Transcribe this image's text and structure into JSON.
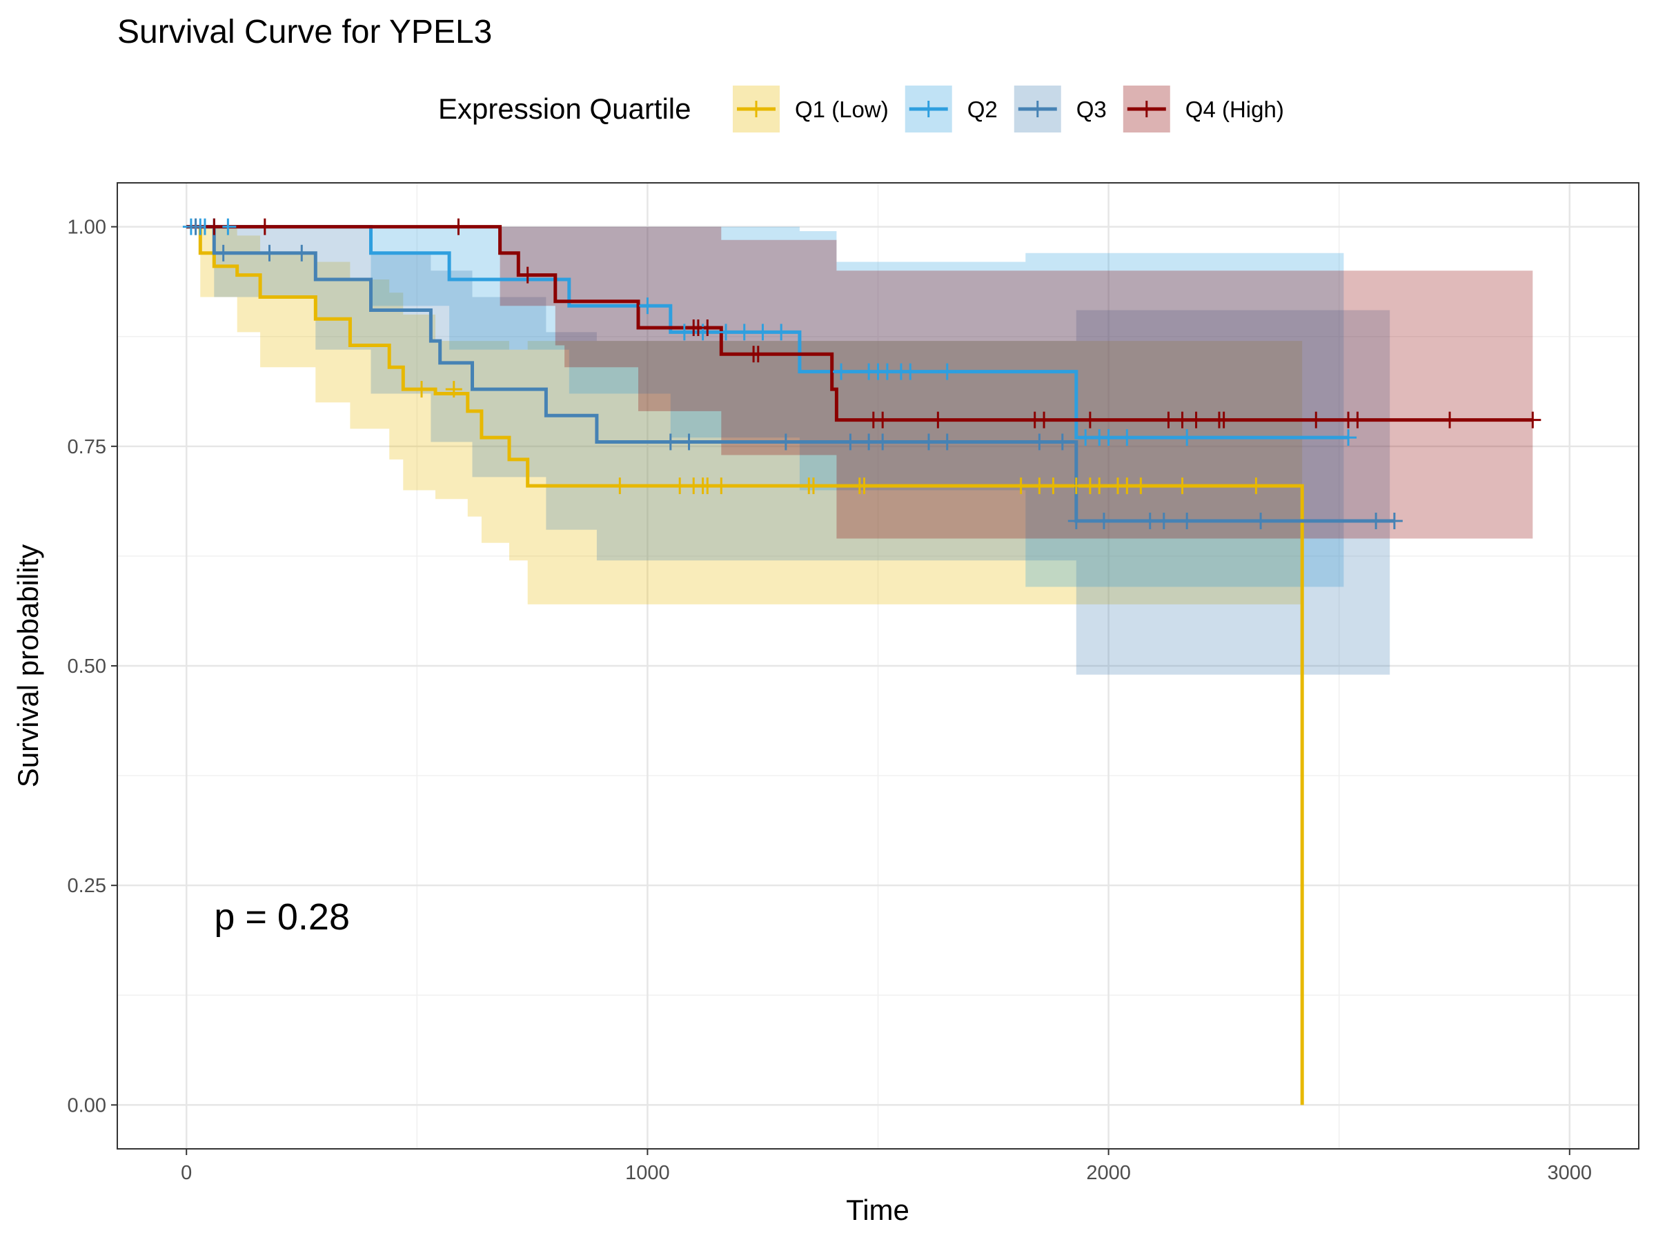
{
  "chart_data": {
    "type": "line",
    "title": "Survival Curve for YPEL3",
    "xlabel": "Time",
    "ylabel": "Survival probability",
    "xlim": [
      -150,
      3150
    ],
    "ylim": [
      -0.05,
      1.05
    ],
    "x_ticks": [
      0,
      1000,
      2000,
      3000
    ],
    "x_tick_labels": [
      "0",
      "1000",
      "2000",
      "3000"
    ],
    "y_ticks": [
      0,
      0.25,
      0.5,
      0.75,
      1.0
    ],
    "y_tick_labels": [
      "0.00",
      "0.25",
      "0.50",
      "0.75",
      "1.00"
    ],
    "grid": true,
    "legend_position": "top",
    "legend_title": "Expression Quartile",
    "annotation": "p = 0.28",
    "annotation_position": {
      "x": 60,
      "y": 0.2
    },
    "series": [
      {
        "name": "Q1 (Low)",
        "color": "#E7B800",
        "steps": [
          [
            0,
            1.0
          ],
          [
            30,
            0.97
          ],
          [
            60,
            0.955
          ],
          [
            110,
            0.945
          ],
          [
            160,
            0.92
          ],
          [
            280,
            0.895
          ],
          [
            355,
            0.865
          ],
          [
            440,
            0.84
          ],
          [
            470,
            0.815
          ],
          [
            540,
            0.81
          ],
          [
            610,
            0.79
          ],
          [
            640,
            0.76
          ],
          [
            700,
            0.735
          ],
          [
            740,
            0.705
          ],
          [
            2420,
            0.705
          ],
          [
            2420,
            0.0
          ]
        ],
        "ci_lower": [
          [
            0,
            1.0
          ],
          [
            30,
            0.92
          ],
          [
            110,
            0.88
          ],
          [
            160,
            0.84
          ],
          [
            280,
            0.8
          ],
          [
            355,
            0.77
          ],
          [
            440,
            0.735
          ],
          [
            470,
            0.7
          ],
          [
            540,
            0.69
          ],
          [
            610,
            0.67
          ],
          [
            640,
            0.64
          ],
          [
            700,
            0.62
          ],
          [
            740,
            0.57
          ],
          [
            2420,
            0.57
          ]
        ],
        "ci_upper": [
          [
            0,
            1.0
          ],
          [
            30,
            1.0
          ],
          [
            110,
            0.99
          ],
          [
            160,
            0.97
          ],
          [
            280,
            0.96
          ],
          [
            355,
            0.94
          ],
          [
            440,
            0.925
          ],
          [
            470,
            0.9
          ],
          [
            540,
            0.87
          ],
          [
            610,
            0.87
          ],
          [
            640,
            0.87
          ],
          [
            700,
            0.86
          ],
          [
            740,
            0.87
          ],
          [
            2420,
            0.87
          ]
        ],
        "censor_times": [
          510,
          580,
          940,
          1070,
          1100,
          1120,
          1130,
          1160,
          1350,
          1360,
          1460,
          1470,
          1810,
          1850,
          1880,
          1930,
          1960,
          1980,
          2020,
          2040,
          2070,
          2160,
          2320
        ],
        "censor_values": [
          0.815,
          0.815,
          0.705,
          0.705,
          0.705,
          0.705,
          0.705,
          0.705,
          0.705,
          0.705,
          0.705,
          0.705,
          0.705,
          0.705,
          0.705,
          0.705,
          0.705,
          0.705,
          0.705,
          0.705,
          0.705,
          0.705,
          0.705
        ]
      },
      {
        "name": "Q2",
        "color": "#2E9FDF",
        "steps": [
          [
            0,
            1.0
          ],
          [
            400,
            0.97
          ],
          [
            570,
            0.94
          ],
          [
            830,
            0.91
          ],
          [
            1050,
            0.88
          ],
          [
            1330,
            0.835
          ],
          [
            1930,
            0.76
          ],
          [
            2520,
            0.76
          ]
        ],
        "ci_lower": [
          [
            0,
            1.0
          ],
          [
            400,
            0.91
          ],
          [
            570,
            0.86
          ],
          [
            830,
            0.81
          ],
          [
            1050,
            0.76
          ],
          [
            1330,
            0.7
          ],
          [
            1820,
            0.59
          ],
          [
            2510,
            0.59
          ]
        ],
        "ci_upper": [
          [
            0,
            1.0
          ],
          [
            400,
            1.0
          ],
          [
            1330,
            0.995
          ],
          [
            1410,
            0.96
          ],
          [
            1820,
            0.97
          ],
          [
            2510,
            0.97
          ]
        ],
        "censor_times": [
          10,
          20,
          30,
          40,
          60,
          90,
          1000,
          1080,
          1120,
          1170,
          1210,
          1250,
          1290,
          1420,
          1480,
          1500,
          1520,
          1550,
          1570,
          1650,
          1950,
          1980,
          2000,
          2040,
          2170,
          2520
        ],
        "censor_values": [
          1.0,
          1.0,
          1.0,
          1.0,
          1.0,
          1.0,
          0.91,
          0.88,
          0.88,
          0.88,
          0.88,
          0.88,
          0.88,
          0.835,
          0.835,
          0.835,
          0.835,
          0.835,
          0.835,
          0.835,
          0.76,
          0.76,
          0.76,
          0.76,
          0.76,
          0.76
        ]
      },
      {
        "name": "Q3",
        "color": "#4682B4",
        "steps": [
          [
            0,
            1.0
          ],
          [
            60,
            0.97
          ],
          [
            280,
            0.94
          ],
          [
            400,
            0.905
          ],
          [
            530,
            0.87
          ],
          [
            550,
            0.845
          ],
          [
            620,
            0.815
          ],
          [
            780,
            0.785
          ],
          [
            890,
            0.755
          ],
          [
            1930,
            0.755
          ],
          [
            1930,
            0.665
          ],
          [
            2620,
            0.665
          ]
        ],
        "ci_lower": [
          [
            0,
            1.0
          ],
          [
            60,
            0.92
          ],
          [
            280,
            0.86
          ],
          [
            400,
            0.81
          ],
          [
            530,
            0.755
          ],
          [
            620,
            0.715
          ],
          [
            780,
            0.655
          ],
          [
            890,
            0.62
          ],
          [
            1930,
            0.49
          ],
          [
            2610,
            0.49
          ]
        ],
        "ci_upper": [
          [
            0,
            1.0
          ],
          [
            400,
            0.97
          ],
          [
            530,
            0.95
          ],
          [
            620,
            0.92
          ],
          [
            780,
            0.88
          ],
          [
            890,
            0.87
          ],
          [
            1930,
            0.905
          ],
          [
            2610,
            0.905
          ]
        ],
        "censor_times": [
          20,
          60,
          80,
          180,
          250,
          1050,
          1090,
          1300,
          1440,
          1480,
          1510,
          1610,
          1650,
          1850,
          1900,
          1930,
          1990,
          2090,
          2120,
          2170,
          2330,
          2580,
          2620
        ],
        "censor_values": [
          1.0,
          1.0,
          0.97,
          0.97,
          0.97,
          0.755,
          0.755,
          0.755,
          0.755,
          0.755,
          0.755,
          0.755,
          0.755,
          0.755,
          0.755,
          0.665,
          0.665,
          0.665,
          0.665,
          0.665,
          0.665,
          0.665,
          0.665
        ]
      },
      {
        "name": "Q4 (High)",
        "color": "#8B0000",
        "steps": [
          [
            0,
            1.0
          ],
          [
            680,
            0.97
          ],
          [
            720,
            0.945
          ],
          [
            800,
            0.915
          ],
          [
            980,
            0.885
          ],
          [
            1160,
            0.855
          ],
          [
            1400,
            0.815
          ],
          [
            1410,
            0.78
          ],
          [
            2920,
            0.78
          ]
        ],
        "ci_lower": [
          [
            0,
            1.0
          ],
          [
            680,
            0.91
          ],
          [
            800,
            0.865
          ],
          [
            820,
            0.84
          ],
          [
            980,
            0.79
          ],
          [
            1160,
            0.74
          ],
          [
            1410,
            0.645
          ],
          [
            2920,
            0.645
          ]
        ],
        "ci_upper": [
          [
            0,
            1.0
          ],
          [
            680,
            1.0
          ],
          [
            1160,
            0.985
          ],
          [
            1410,
            0.95
          ],
          [
            2920,
            0.94
          ]
        ],
        "censor_times": [
          60,
          170,
          590,
          740,
          1100,
          1110,
          1130,
          1230,
          1240,
          1490,
          1510,
          1630,
          1840,
          1860,
          1960,
          2130,
          2160,
          2190,
          2240,
          2250,
          2450,
          2520,
          2540,
          2740,
          2920
        ],
        "censor_values": [
          1.0,
          1.0,
          1.0,
          0.945,
          0.885,
          0.885,
          0.885,
          0.855,
          0.855,
          0.78,
          0.78,
          0.78,
          0.78,
          0.78,
          0.78,
          0.78,
          0.78,
          0.78,
          0.78,
          0.78,
          0.78,
          0.78,
          0.78,
          0.78,
          0.78
        ]
      }
    ]
  }
}
